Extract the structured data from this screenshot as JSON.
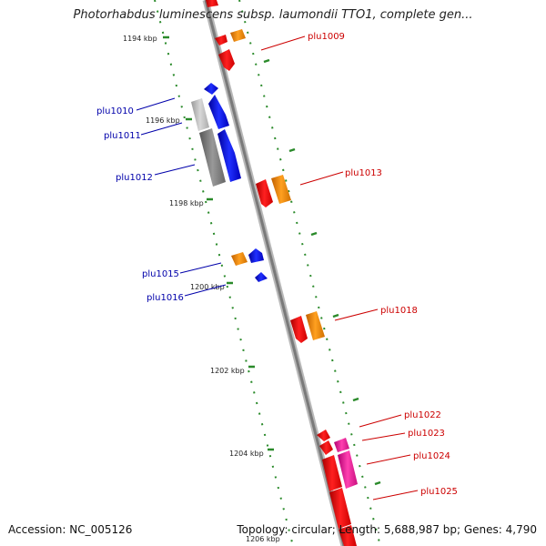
{
  "title": "Photorhabdus luminescens subsp. laumondii TTO1, complete gen...",
  "footer": {
    "accession": "Accession: NC_005126",
    "summary": "Topology: circular; Length: 5,688,987 bp; Genes: 4,790"
  },
  "kbp_labels": [
    "1194 kbp",
    "1196 kbp",
    "1198 kbp",
    "1200 kbp",
    "1202 kbp",
    "1204 kbp",
    "1206 kbp"
  ],
  "gene_labels": {
    "plu1009": "plu1009",
    "plu1010": "plu1010",
    "plu1011": "plu1011",
    "plu1012": "plu1012",
    "plu1013": "plu1013",
    "plu1015": "plu1015",
    "plu1016": "plu1016",
    "plu1018": "plu1018",
    "plu1022": "plu1022",
    "plu1023": "plu1023",
    "plu1024": "plu1024",
    "plu1025": "plu1025"
  },
  "colors": {
    "backbone": "#888888",
    "ticks": "#2a8a2a",
    "left_label": "#0000aa",
    "right_label": "#cc0000",
    "red": "#ee0000",
    "orange": "#f08c00",
    "blue": "#0000ee",
    "gray": "#777777",
    "magenta": "#e8189a"
  }
}
